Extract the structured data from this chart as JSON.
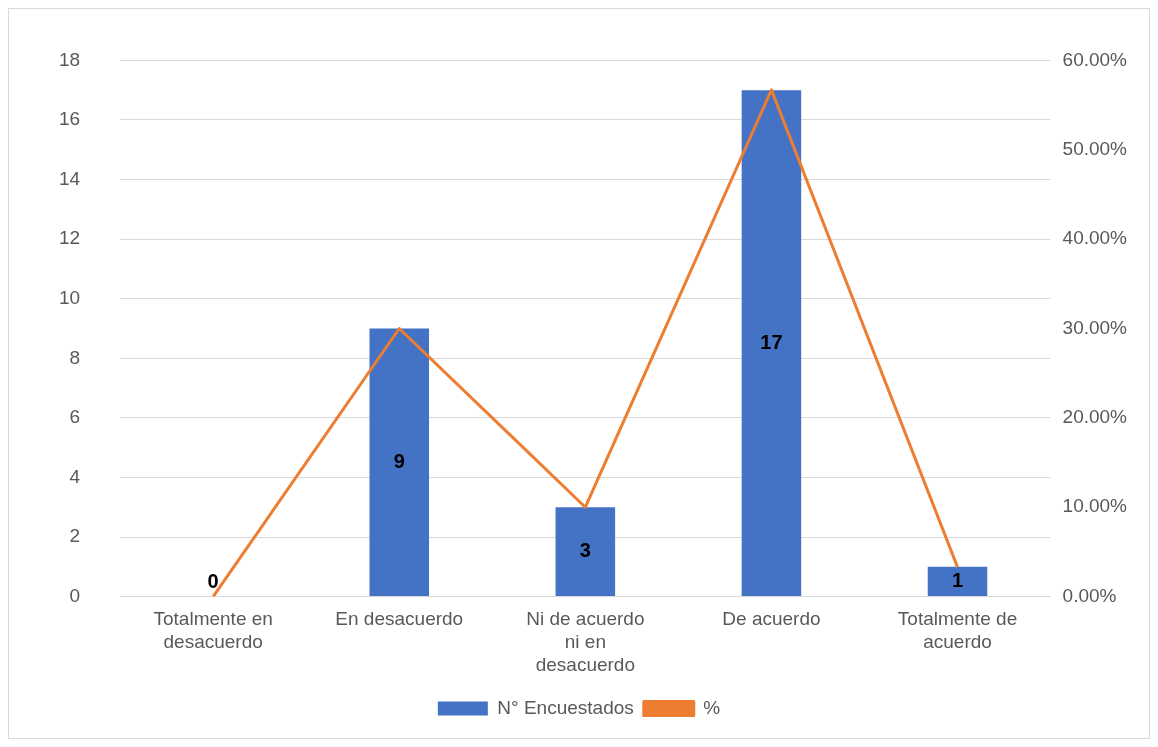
{
  "chart_data": {
    "type": "bar",
    "categories": [
      "Totalmente en desacuerdo",
      "En desacuerdo",
      "Ni de acuerdo ni en desacuerdo",
      "De acuerdo",
      "Totalmente de acuerdo"
    ],
    "series": [
      {
        "name": "N° Encuestados",
        "type": "bar",
        "color": "#4472c4",
        "values": [
          0,
          9,
          3,
          17,
          1
        ],
        "value_labels": [
          "0",
          "9",
          "3",
          "17",
          "1"
        ]
      },
      {
        "name": "%",
        "type": "line",
        "axis": "y2",
        "color": "#ed7d31",
        "values": [
          0,
          30,
          10,
          56.7,
          3.3
        ]
      }
    ],
    "ylim": [
      0,
      18
    ],
    "yticks": [
      0,
      2,
      4,
      6,
      8,
      10,
      12,
      14,
      16,
      18
    ],
    "y2lim": [
      0,
      60
    ],
    "y2ticks": [
      {
        "value": 0,
        "label": "0.00%"
      },
      {
        "value": 10,
        "label": "10.00%"
      },
      {
        "value": 20,
        "label": "20.00%"
      },
      {
        "value": 30,
        "label": "30.00%"
      },
      {
        "value": 40,
        "label": "40.00%"
      },
      {
        "value": 50,
        "label": "50.00%"
      },
      {
        "value": 60,
        "label": "60.00%"
      }
    ],
    "grid": "y",
    "legend": "bottom",
    "marker": "none",
    "line_style": "solid"
  }
}
